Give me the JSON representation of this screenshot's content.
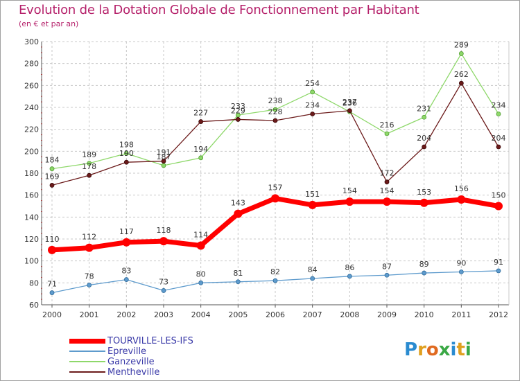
{
  "title": "Evolution de la Dotation Globale de Fonctionnement par Habitant",
  "subtitle": "(en € et par an)",
  "brand": {
    "letters": [
      "P",
      "r",
      "o",
      "x",
      "i",
      "t",
      "i"
    ],
    "colors": [
      "#2a8bd0",
      "#e0a020",
      "#e06a20",
      "#3aa845",
      "#2a8bd0",
      "#e0a020",
      "#3aa845"
    ]
  },
  "chart_data": {
    "type": "line",
    "x": [
      "2000",
      "2001",
      "2002",
      "2003",
      "2004",
      "2005",
      "2006",
      "2007",
      "2008",
      "2009",
      "2010",
      "2011",
      "2012"
    ],
    "ylim": [
      60,
      300
    ],
    "yticks": [
      60,
      80,
      100,
      120,
      140,
      160,
      180,
      200,
      220,
      240,
      260,
      280,
      300
    ],
    "grid": true,
    "legend_position": "bottom-left",
    "series": [
      {
        "name": "TOURVILLE-LES-IFS",
        "color": "#ff0000",
        "values": [
          110,
          112,
          117,
          118,
          114,
          143,
          157,
          151,
          154,
          154,
          153,
          156,
          150
        ]
      },
      {
        "name": "Epreville",
        "color": "#5e9bcd",
        "values": [
          71,
          78,
          83,
          73,
          80,
          81,
          82,
          84,
          86,
          87,
          89,
          90,
          91
        ]
      },
      {
        "name": "Ganzeville",
        "color": "#8ed86a",
        "values": [
          184,
          189,
          198,
          187,
          194,
          233,
          238,
          254,
          236,
          216,
          231,
          289,
          234
        ]
      },
      {
        "name": "Mentheville",
        "color": "#6b1a1a",
        "values": [
          169,
          178,
          190,
          191,
          227,
          229,
          228,
          234,
          237,
          172,
          204,
          262,
          204
        ]
      }
    ]
  }
}
